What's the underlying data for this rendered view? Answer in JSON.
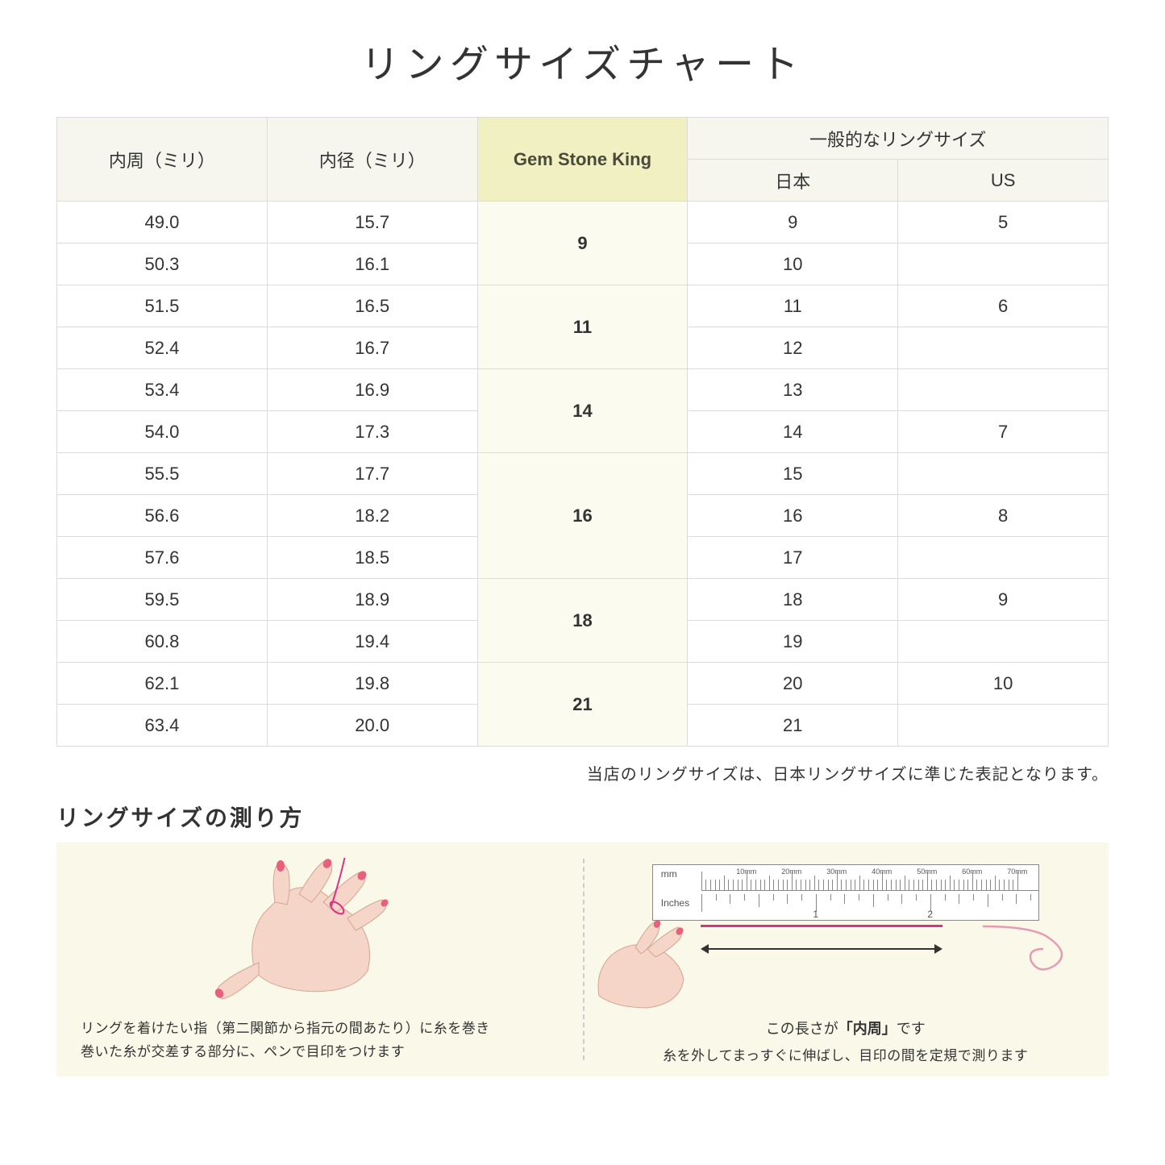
{
  "title": "リングサイズチャート",
  "headers": {
    "circumference": "内周（ミリ）",
    "diameter": "内径（ミリ）",
    "gsk": "Gem Stone King",
    "general": "一般的なリングサイズ",
    "japan": "日本",
    "us": "US"
  },
  "groups": [
    {
      "gsk": "9",
      "rows": [
        {
          "c": "49.0",
          "d": "15.7",
          "jp": "9",
          "us": "5"
        },
        {
          "c": "50.3",
          "d": "16.1",
          "jp": "10",
          "us": ""
        }
      ]
    },
    {
      "gsk": "11",
      "rows": [
        {
          "c": "51.5",
          "d": "16.5",
          "jp": "11",
          "us": "6"
        },
        {
          "c": "52.4",
          "d": "16.7",
          "jp": "12",
          "us": ""
        }
      ]
    },
    {
      "gsk": "14",
      "rows": [
        {
          "c": "53.4",
          "d": "16.9",
          "jp": "13",
          "us": ""
        },
        {
          "c": "54.0",
          "d": "17.3",
          "jp": "14",
          "us": "7"
        }
      ]
    },
    {
      "gsk": "16",
      "rows": [
        {
          "c": "55.5",
          "d": "17.7",
          "jp": "15",
          "us": ""
        },
        {
          "c": "56.6",
          "d": "18.2",
          "jp": "16",
          "us": "8"
        },
        {
          "c": "57.6",
          "d": "18.5",
          "jp": "17",
          "us": ""
        }
      ]
    },
    {
      "gsk": "18",
      "rows": [
        {
          "c": "59.5",
          "d": "18.9",
          "jp": "18",
          "us": "9"
        },
        {
          "c": "60.8",
          "d": "19.4",
          "jp": "19",
          "us": ""
        }
      ]
    },
    {
      "gsk": "21",
      "rows": [
        {
          "c": "62.1",
          "d": "19.8",
          "jp": "20",
          "us": "10"
        },
        {
          "c": "63.4",
          "d": "20.0",
          "jp": "21",
          "us": ""
        }
      ]
    }
  ],
  "note": "当店のリングサイズは、日本リングサイズに準じた表記となります。",
  "howto": {
    "title": "リングサイズの測り方",
    "left_caption_l1": "リングを着けたい指（第二関節から指元の間あたり）に糸を巻き",
    "left_caption_l2": "巻いた糸が交差する部分に、ペンで目印をつけます",
    "right_arrow_label_pre": "この長さが",
    "right_arrow_label_bold": "「内周」",
    "right_arrow_label_post": "です",
    "right_caption": "糸を外してまっすぐに伸ばし、目印の間を定規で測ります",
    "ruler_mm": "mm",
    "ruler_inches": "Inches",
    "ruler_mm_ticks": [
      "10mm",
      "20mm",
      "30mm",
      "40mm",
      "50mm",
      "60mm",
      "70mm"
    ],
    "ruler_inch_ticks": [
      "1",
      "2"
    ]
  },
  "colors": {
    "skin": "#f5d5c8",
    "skin_dark": "#e8b8a8",
    "nail": "#e8617c",
    "thread": "#d63384",
    "panel_bg": "#faf8e8",
    "header_bg": "#f6f6ee",
    "gsk_header_bg": "#f1f0c2",
    "gsk_cell_bg": "#fbfbef",
    "border": "#dcdcdc"
  }
}
